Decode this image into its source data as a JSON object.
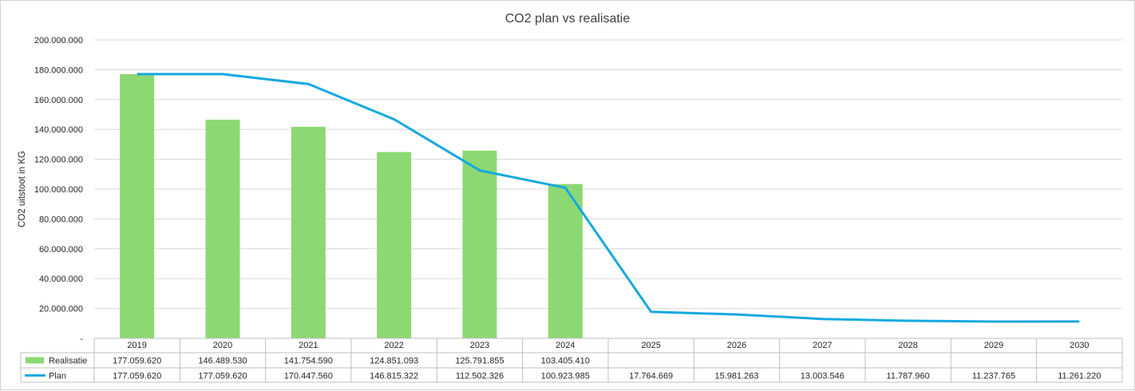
{
  "chart_data": {
    "type": "bar",
    "title": "CO2 plan vs realisatie",
    "ylabel": "CO2 uitstoot in KG",
    "ylim": [
      0,
      200000000
    ],
    "y_ticks": [
      {
        "value": 200000000,
        "label": "200.000.000"
      },
      {
        "value": 180000000,
        "label": "180.000.000"
      },
      {
        "value": 160000000,
        "label": "160.000.000"
      },
      {
        "value": 140000000,
        "label": "140.000.000"
      },
      {
        "value": 120000000,
        "label": "120.000.000"
      },
      {
        "value": 100000000,
        "label": "100.000.000"
      },
      {
        "value": 80000000,
        "label": "80.000.000"
      },
      {
        "value": 60000000,
        "label": "60.000.000"
      },
      {
        "value": 40000000,
        "label": "40.000.000"
      },
      {
        "value": 20000000,
        "label": "20.000.000"
      },
      {
        "value": 0,
        "label": "-"
      }
    ],
    "categories": [
      "2019",
      "2020",
      "2021",
      "2022",
      "2023",
      "2024",
      "2025",
      "2026",
      "2027",
      "2028",
      "2029",
      "2030"
    ],
    "series": [
      {
        "name": "Realisatie",
        "kind": "bar",
        "color": "#8cd873",
        "values": [
          177059620,
          146489530,
          141754590,
          124851093,
          125791855,
          103405410,
          null,
          null,
          null,
          null,
          null,
          null
        ],
        "labels": [
          "177.059.620",
          "146.489.530",
          "141.754.590",
          "124.851.093",
          "125.791.855",
          "103.405.410",
          "",
          "",
          "",
          "",
          "",
          ""
        ]
      },
      {
        "name": "Plan",
        "kind": "line",
        "color": "#15a9e0",
        "values": [
          177059620,
          177059620,
          170447560,
          146815322,
          112502326,
          100923985,
          17764669,
          15981263,
          13003546,
          11787960,
          11237765,
          11261220
        ],
        "labels": [
          "177.059.620",
          "177.059.620",
          "170.447.560",
          "146.815.322",
          "112.502.326",
          "100.923.985",
          "17.764.669",
          "15.981.263",
          "13.003.546",
          "11.787.960",
          "11.237.765",
          "11.261.220"
        ]
      }
    ],
    "grid": true,
    "legend": "data-table"
  }
}
